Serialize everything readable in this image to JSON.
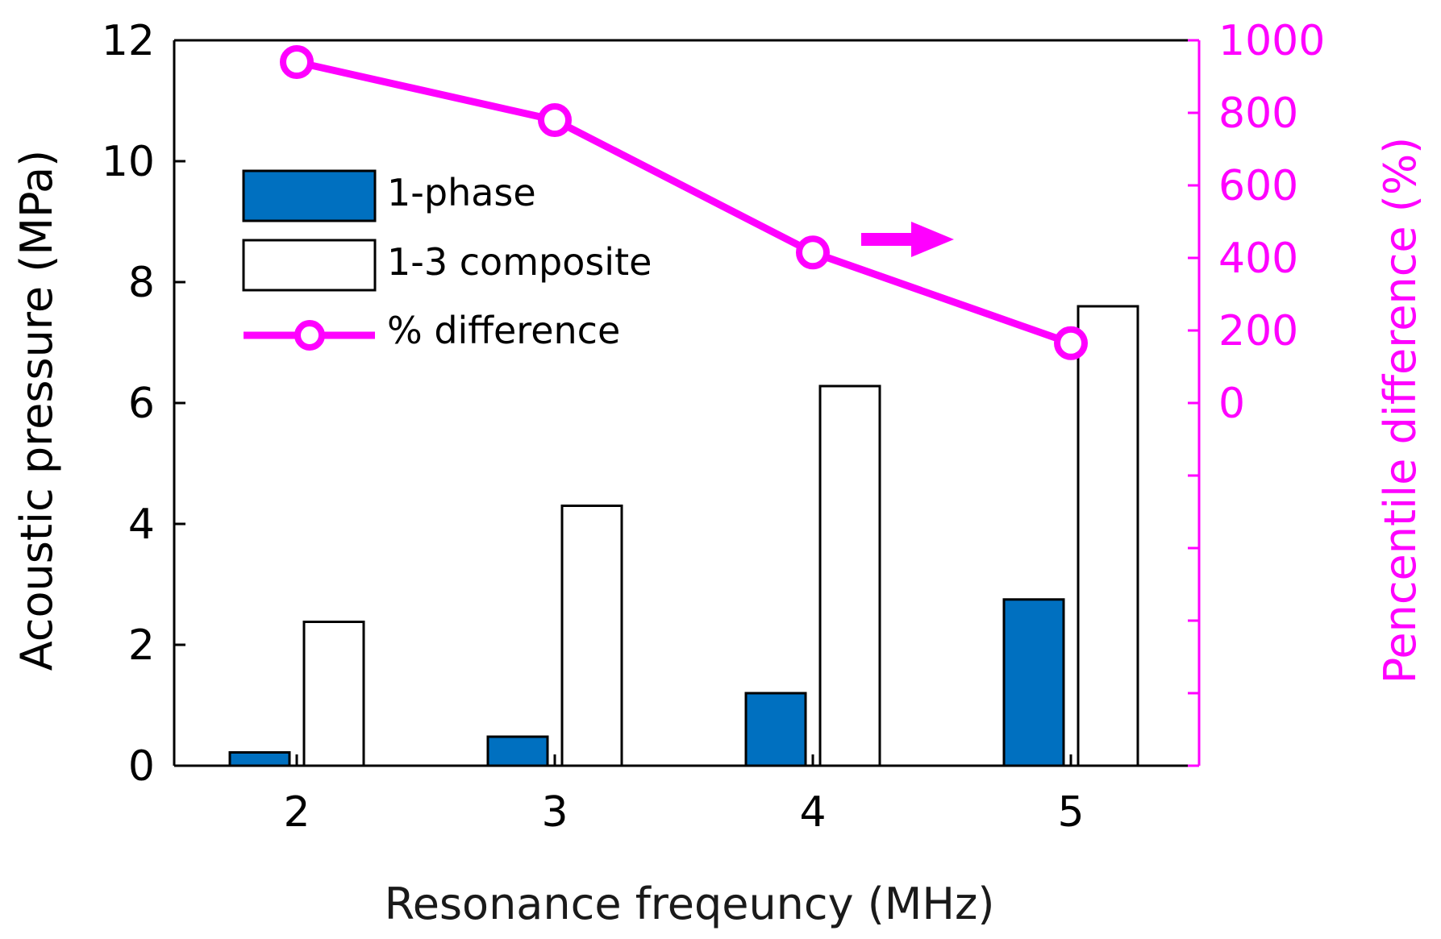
{
  "chart_data": {
    "type": "bar",
    "xlabel": "Resonance freqeuncy (MHz)",
    "ylabel": "Acoustic pressure (MPa)",
    "ylabel_right": "Pencentile difference (%)",
    "categories": [
      "2",
      "3",
      "4",
      "5"
    ],
    "ylim": [
      0,
      12
    ],
    "yticks": [
      0,
      2,
      4,
      6,
      8,
      10,
      12
    ],
    "ylim_right": [
      -1000,
      1000
    ],
    "yticks_right_labeled": [
      0,
      200,
      400,
      600,
      800,
      1000
    ],
    "series": [
      {
        "name": "1-phase",
        "kind": "bar",
        "axis": "left",
        "color": "#0070C0",
        "values": [
          0.22,
          0.48,
          1.2,
          2.75
        ]
      },
      {
        "name": "1-3 composite",
        "kind": "bar",
        "axis": "left",
        "color": "#FFFFFF",
        "values": [
          2.38,
          4.3,
          6.28,
          7.6
        ]
      },
      {
        "name": "% difference",
        "kind": "line",
        "axis": "right",
        "color": "#FF00FF",
        "values": [
          940,
          780,
          415,
          165
        ]
      }
    ],
    "legend_position": "top-left",
    "annotations": [
      {
        "type": "arrow",
        "direction": "right",
        "color": "#FF00FF",
        "meaning": "line uses right axis"
      }
    ],
    "grid": false
  },
  "colors": {
    "axis_left": "#000000",
    "axis_right": "#FF00FF"
  }
}
